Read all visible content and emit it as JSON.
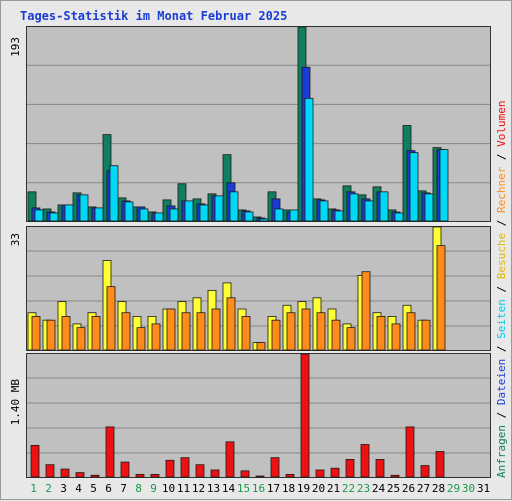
{
  "title": "Tages-Statistik im Monat Februar 2025",
  "chart_data": [
    {
      "type": "bar",
      "panel": "top",
      "ymax_label": "193",
      "ylim": [
        0,
        193
      ],
      "categories": [
        "1",
        "2",
        "3",
        "4",
        "5",
        "6",
        "7",
        "8",
        "9",
        "10",
        "11",
        "12",
        "13",
        "14",
        "15",
        "16",
        "17",
        "18",
        "19",
        "20",
        "21",
        "22",
        "23",
        "24",
        "25",
        "26",
        "27",
        "28"
      ],
      "series": [
        {
          "name": "Anfragen",
          "color": "#0f7f5f",
          "values": [
            29,
            12,
            16,
            28,
            14,
            86,
            23,
            14,
            9,
            21,
            37,
            22,
            27,
            66,
            11,
            4,
            29,
            11,
            193,
            22,
            12,
            35,
            26,
            34,
            11,
            95,
            30,
            73
          ]
        },
        {
          "name": "Dateien",
          "color": "#1a3cd6",
          "values": [
            13,
            9,
            16,
            26,
            13,
            50,
            20,
            14,
            8,
            15,
            20,
            17,
            25,
            38,
            10,
            3,
            22,
            9,
            153,
            21,
            11,
            29,
            22,
            29,
            9,
            70,
            28,
            71
          ]
        },
        {
          "name": "Seiten",
          "color": "#00d8f8",
          "values": [
            11,
            8,
            16,
            26,
            13,
            55,
            19,
            12,
            8,
            12,
            20,
            16,
            25,
            29,
            9,
            2,
            12,
            11,
            122,
            20,
            10,
            27,
            20,
            29,
            8,
            68,
            27,
            71
          ]
        }
      ]
    },
    {
      "type": "bar",
      "panel": "middle",
      "ymax_label": "33",
      "ylim": [
        0,
        33
      ],
      "categories": [
        "1",
        "2",
        "3",
        "4",
        "5",
        "6",
        "7",
        "8",
        "9",
        "10",
        "11",
        "12",
        "13",
        "14",
        "15",
        "16",
        "17",
        "18",
        "19",
        "20",
        "21",
        "22",
        "23",
        "24",
        "25",
        "26",
        "27",
        "28"
      ],
      "series": [
        {
          "name": "Besuche",
          "color": "#ffff33",
          "values": [
            10,
            8,
            13,
            7,
            10,
            24,
            13,
            9,
            9,
            11,
            13,
            14,
            16,
            18,
            11,
            2,
            9,
            12,
            13,
            14,
            11,
            7,
            20,
            10,
            9,
            12,
            8,
            33
          ]
        },
        {
          "name": "Rechner",
          "color": "#ff8c1a",
          "values": [
            9,
            8,
            9,
            6,
            9,
            17,
            10,
            6,
            7,
            11,
            10,
            10,
            11,
            14,
            9,
            2,
            8,
            10,
            11,
            10,
            8,
            6,
            21,
            9,
            7,
            10,
            8,
            28
          ]
        }
      ]
    },
    {
      "type": "bar",
      "panel": "bottom",
      "ymax_label": "1.40 MB",
      "ylim": [
        0,
        1.4
      ],
      "categories": [
        "1",
        "2",
        "3",
        "4",
        "5",
        "6",
        "7",
        "8",
        "9",
        "10",
        "11",
        "12",
        "13",
        "14",
        "15",
        "16",
        "17",
        "18",
        "19",
        "20",
        "21",
        "22",
        "23",
        "24",
        "25",
        "26",
        "27",
        "28"
      ],
      "series": [
        {
          "name": "Volumen",
          "color": "#ee1111",
          "values": [
            0.36,
            0.14,
            0.09,
            0.05,
            0.02,
            0.57,
            0.17,
            0.03,
            0.03,
            0.19,
            0.22,
            0.14,
            0.08,
            0.4,
            0.07,
            0.01,
            0.22,
            0.03,
            1.4,
            0.08,
            0.1,
            0.2,
            0.37,
            0.2,
            0.02,
            0.57,
            0.13,
            0.29
          ]
        }
      ]
    }
  ],
  "x_labels": [
    {
      "label": "1",
      "weekend": true
    },
    {
      "label": "2",
      "weekend": true
    },
    {
      "label": "3",
      "weekend": false
    },
    {
      "label": "4",
      "weekend": false
    },
    {
      "label": "5",
      "weekend": false
    },
    {
      "label": "6",
      "weekend": false
    },
    {
      "label": "7",
      "weekend": false
    },
    {
      "label": "8",
      "weekend": true
    },
    {
      "label": "9",
      "weekend": true
    },
    {
      "label": "10",
      "weekend": false
    },
    {
      "label": "11",
      "weekend": false
    },
    {
      "label": "12",
      "weekend": false
    },
    {
      "label": "13",
      "weekend": false
    },
    {
      "label": "14",
      "weekend": false
    },
    {
      "label": "15",
      "weekend": true
    },
    {
      "label": "16",
      "weekend": true
    },
    {
      "label": "17",
      "weekend": false
    },
    {
      "label": "18",
      "weekend": false
    },
    {
      "label": "19",
      "weekend": false
    },
    {
      "label": "20",
      "weekend": false
    },
    {
      "label": "21",
      "weekend": false
    },
    {
      "label": "22",
      "weekend": true
    },
    {
      "label": "23",
      "weekend": true
    },
    {
      "label": "24",
      "weekend": false
    },
    {
      "label": "25",
      "weekend": false
    },
    {
      "label": "26",
      "weekend": false
    },
    {
      "label": "27",
      "weekend": false
    },
    {
      "label": "28",
      "weekend": false
    },
    {
      "label": "29",
      "weekend": true
    },
    {
      "label": "30",
      "weekend": true
    },
    {
      "label": "31",
      "weekend": false
    }
  ],
  "legend_right": [
    {
      "text": "Anfragen",
      "color": "#0f7f5f"
    },
    {
      "text": " / ",
      "color": "#000000"
    },
    {
      "text": "Dateien",
      "color": "#1a3cd6"
    },
    {
      "text": " / ",
      "color": "#000000"
    },
    {
      "text": "Seiten",
      "color": "#00c8e8"
    },
    {
      "text": " / ",
      "color": "#000000"
    },
    {
      "text": "Besuche",
      "color": "#e6b800"
    },
    {
      "text": " / ",
      "color": "#000000"
    },
    {
      "text": "Rechner",
      "color": "#ff8c1a"
    },
    {
      "text": " / ",
      "color": "#000000"
    },
    {
      "text": "Volumen",
      "color": "#ee1111"
    }
  ],
  "colors": {
    "panel_bg": "#c0c0c0",
    "page_bg": "#e8e8e8",
    "grid": "#888888",
    "weekday_label": "#000000",
    "weekend_label": "#1a9a4a"
  }
}
